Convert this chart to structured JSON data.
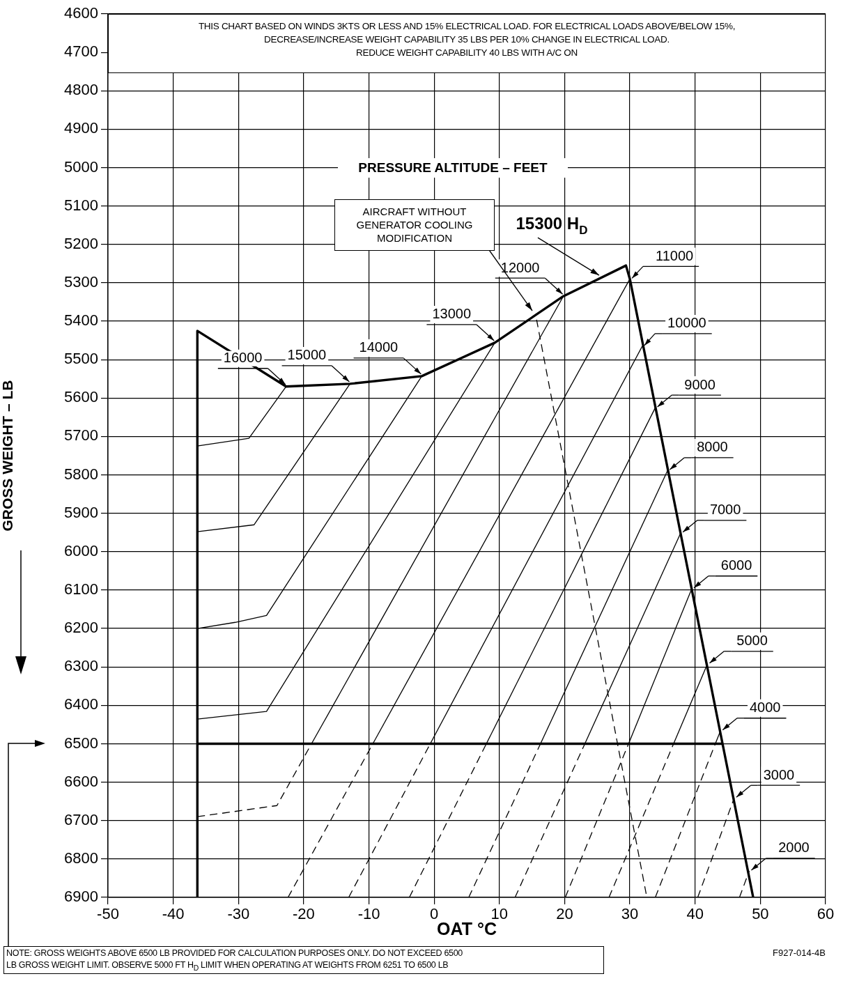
{
  "chart_data": {
    "type": "line",
    "xlabel": "OAT °C",
    "ylabel": "GROSS WEIGHT – LB",
    "xlim": [
      -50,
      60
    ],
    "xticks": [
      -50,
      -40,
      -30,
      -20,
      -10,
      0,
      10,
      20,
      30,
      40,
      50,
      60
    ],
    "ylim": [
      6900,
      4600
    ],
    "yticks": [
      4600,
      4700,
      4800,
      4900,
      5000,
      5100,
      5200,
      5300,
      5400,
      5500,
      5600,
      5700,
      5800,
      5900,
      6000,
      6100,
      6200,
      6300,
      6400,
      6500,
      6600,
      6700,
      6800,
      6900
    ],
    "grid": true,
    "legend": false,
    "marker": "none",
    "series": [
      {
        "color": "#000000",
        "x": [
          -36.3,
          -36.3,
          -22.7,
          -12.9,
          -1.9,
          9.3,
          19.8,
          29.4,
          30.0,
          48.9
        ],
        "values": [
          6900,
          5425,
          5570,
          5563,
          5543,
          5456,
          5335,
          5255,
          5290,
          6900
        ]
      },
      {
        "color": "#000000",
        "x": [
          -36.3,
          44.2
        ],
        "values": [
          6500,
          6500
        ]
      },
      {
        "color": "#000000",
        "line_style": "dashed",
        "x": [
          15.7,
          32.6
        ],
        "values": [
          5396,
          6900
        ]
      },
      {
        "name": "16000",
        "color": "#000000",
        "x": [
          -36.3,
          -28.4,
          -22.7
        ],
        "values": [
          5725,
          5705,
          5570
        ]
      },
      {
        "name": "15000",
        "color": "#000000",
        "x": [
          -36.3,
          -27.6,
          -12.9
        ],
        "values": [
          5948,
          5930,
          5563
        ]
      },
      {
        "name": "14000",
        "color": "#000000",
        "x": [
          -36.3,
          -30.5,
          -25.7,
          -1.9
        ],
        "values": [
          6200,
          6184,
          6166,
          5543
        ]
      },
      {
        "name": "13000",
        "color": "#000000",
        "x": [
          -36.3,
          -25.7,
          9.3
        ],
        "values": [
          6436,
          6416,
          5456
        ]
      },
      {
        "name": "12000",
        "color": "#000000",
        "x": [
          -18.8,
          19.8
        ],
        "values": [
          6500,
          5335
        ]
      },
      {
        "color": "#000000",
        "line_style": "dashed",
        "x": [
          -36.3,
          -24.1,
          -18.8
        ],
        "values": [
          6690,
          6661,
          6500
        ]
      },
      {
        "name": "11000",
        "color": "#000000",
        "x": [
          -9.4,
          30.0
        ],
        "values": [
          6500,
          5290
        ]
      },
      {
        "color": "#000000",
        "line_style": "dashed",
        "x": [
          -22.4,
          -9.4
        ],
        "values": [
          6900,
          6500
        ]
      },
      {
        "name": "10000",
        "color": "#000000",
        "x": [
          -0.6,
          31.9
        ],
        "values": [
          6500,
          5465
        ]
      },
      {
        "color": "#000000",
        "line_style": "dashed",
        "x": [
          -13.1,
          -0.6
        ],
        "values": [
          6900,
          6500
        ]
      },
      {
        "name": "9000",
        "color": "#000000",
        "x": [
          8.0,
          33.9
        ],
        "values": [
          6500,
          5625
        ]
      },
      {
        "color": "#000000",
        "line_style": "dashed",
        "x": [
          -3.8,
          8.0
        ],
        "values": [
          6900,
          6500
        ]
      },
      {
        "name": "8000",
        "color": "#000000",
        "x": [
          16.3,
          35.8
        ],
        "values": [
          6500,
          5788
        ]
      },
      {
        "color": "#000000",
        "line_style": "dashed",
        "x": [
          5.3,
          16.3
        ],
        "values": [
          6900,
          6500
        ]
      },
      {
        "name": "7000",
        "color": "#000000",
        "x": [
          23.1,
          37.8
        ],
        "values": [
          6500,
          5951
        ]
      },
      {
        "color": "#000000",
        "line_style": "dashed",
        "x": [
          12.4,
          23.1
        ],
        "values": [
          6900,
          6500
        ]
      },
      {
        "name": "6000",
        "color": "#000000",
        "x": [
          29.8,
          39.5
        ],
        "values": [
          6500,
          6096
        ]
      },
      {
        "color": "#000000",
        "line_style": "dashed",
        "x": [
          20.1,
          29.8
        ],
        "values": [
          6900,
          6500
        ]
      },
      {
        "name": "5000",
        "color": "#000000",
        "x": [
          36.7,
          41.9
        ],
        "values": [
          6500,
          6292
        ]
      },
      {
        "color": "#000000",
        "line_style": "dashed",
        "x": [
          26.8,
          36.7
        ],
        "values": [
          6900,
          6500
        ]
      },
      {
        "name": "4000",
        "color": "#000000",
        "x": [
          43.1,
          43.9
        ],
        "values": [
          6500,
          6466
        ]
      },
      {
        "color": "#000000",
        "line_style": "dashed",
        "x": [
          33.9,
          43.1
        ],
        "values": [
          6900,
          6500
        ]
      },
      {
        "name": "3000",
        "color": "#000000",
        "line_style": "dashed",
        "x": [
          40.4,
          46.0
        ],
        "values": [
          6900,
          6641
        ]
      },
      {
        "name": "2000",
        "color": "#000000",
        "line_style": "dashed",
        "x": [
          46.8,
          48.3
        ],
        "values": [
          6900,
          6831
        ]
      }
    ],
    "annotations": [
      "THIS CHART BASED ON WINDS 3KTS OR LESS AND 15% ELECTRICAL LOAD. FOR ELECTRICAL LOADS ABOVE/BELOW 15%,\nDECREASE/INCREASE WEIGHT CAPABILITY 35 LBS PER 10% CHANGE IN ELECTRICAL LOAD.\nREDUCE WEIGHT CAPABILITY 40 LBS WITH A/C ON",
      "PRESSURE ALTITUDE – FEET",
      "AIRCRAFT WITHOUT\nGENERATOR COOLING\nMODIFICATION",
      {
        "text": "15300 H$_{D}$",
        "x": 25.5,
        "y": 5284
      },
      "NOTE: GROSS WEIGHTS ABOVE 6500 LB PROVIDED FOR CALCULATION PURPOSES ONLY. DO NOT EXCEED 6500\nLB GROSS WEIGHT LIMIT. OBSERVE 5000 FT H$_{D}$ LIMIT WHEN OPERATING AT WEIGHTS FROM 6251 TO 6500 LB",
      "F927-014-4B"
    ]
  }
}
